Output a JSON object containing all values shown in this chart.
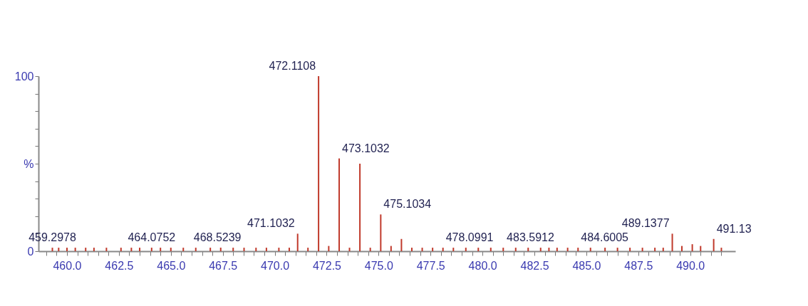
{
  "chart_data": {
    "type": "bar",
    "color": "#c0392b",
    "x": [
      459.2978,
      459.6,
      460.0,
      460.4,
      460.9,
      461.3,
      461.9,
      462.6,
      463.1,
      463.5,
      464.0752,
      464.5,
      465.0,
      465.6,
      466.2,
      466.9,
      467.4,
      468.0,
      468.5239,
      469.1,
      469.6,
      470.2,
      470.7,
      471.1032,
      471.6,
      472.1108,
      472.6,
      473.1032,
      473.6,
      474.1,
      474.6,
      475.1034,
      475.6,
      476.1,
      476.6,
      477.1,
      477.6,
      478.0991,
      478.6,
      479.2,
      479.8,
      480.4,
      481.0,
      481.6,
      482.2,
      482.8,
      483.2,
      483.5912,
      484.1,
      484.6005,
      485.2,
      485.9,
      486.5,
      487.1,
      487.7,
      488.3,
      488.7,
      489.1377,
      489.6,
      490.1,
      490.5,
      491.13,
      491.5
    ],
    "values": [
      2,
      2,
      2,
      2,
      2,
      2,
      2,
      2,
      2,
      2,
      2,
      2,
      2,
      2,
      2,
      2,
      2,
      2,
      2,
      2,
      2,
      2,
      2,
      10,
      2,
      100,
      3,
      53,
      2,
      50,
      2,
      21,
      3,
      7,
      2,
      2,
      2,
      2,
      2,
      2,
      2,
      2,
      2,
      2,
      2,
      2,
      2,
      2,
      2,
      2,
      2,
      2,
      2,
      2,
      2,
      2,
      2,
      10,
      3,
      4,
      3,
      7,
      2
    ],
    "xlim": [
      458.8,
      492.0
    ],
    "ylim": [
      0,
      100
    ],
    "xticks": [
      {
        "value": 459.0,
        "label": null
      },
      {
        "value": 459.5,
        "label": null
      },
      {
        "value": 460.0,
        "label": "460.0"
      },
      {
        "value": 460.5,
        "label": null
      },
      {
        "value": 461.0,
        "label": null
      },
      {
        "value": 461.5,
        "label": null
      },
      {
        "value": 462.0,
        "label": null
      },
      {
        "value": 462.5,
        "label": "462.5"
      },
      {
        "value": 463.0,
        "label": null
      },
      {
        "value": 463.5,
        "label": null
      },
      {
        "value": 464.0,
        "label": null
      },
      {
        "value": 464.5,
        "label": null
      },
      {
        "value": 465.0,
        "label": "465.0"
      },
      {
        "value": 465.5,
        "label": null
      },
      {
        "value": 466.0,
        "label": null
      },
      {
        "value": 466.5,
        "label": null
      },
      {
        "value": 467.0,
        "label": null
      },
      {
        "value": 467.5,
        "label": "467.5"
      },
      {
        "value": 468.0,
        "label": null
      },
      {
        "value": 468.5,
        "label": null
      },
      {
        "value": 469.0,
        "label": null
      },
      {
        "value": 469.5,
        "label": null
      },
      {
        "value": 470.0,
        "label": "470.0"
      },
      {
        "value": 470.5,
        "label": null
      },
      {
        "value": 471.0,
        "label": null
      },
      {
        "value": 471.5,
        "label": null
      },
      {
        "value": 472.0,
        "label": null
      },
      {
        "value": 472.5,
        "label": "472.5"
      },
      {
        "value": 473.0,
        "label": null
      },
      {
        "value": 473.5,
        "label": null
      },
      {
        "value": 474.0,
        "label": null
      },
      {
        "value": 474.5,
        "label": null
      },
      {
        "value": 475.0,
        "label": "475.0"
      },
      {
        "value": 475.5,
        "label": null
      },
      {
        "value": 476.0,
        "label": null
      },
      {
        "value": 476.5,
        "label": null
      },
      {
        "value": 477.0,
        "label": null
      },
      {
        "value": 477.5,
        "label": "477.5"
      },
      {
        "value": 478.0,
        "label": null
      },
      {
        "value": 478.5,
        "label": null
      },
      {
        "value": 479.0,
        "label": null
      },
      {
        "value": 479.5,
        "label": null
      },
      {
        "value": 480.0,
        "label": "480.0"
      },
      {
        "value": 480.5,
        "label": null
      },
      {
        "value": 481.0,
        "label": null
      },
      {
        "value": 481.5,
        "label": null
      },
      {
        "value": 482.0,
        "label": null
      },
      {
        "value": 482.5,
        "label": "482.5"
      },
      {
        "value": 483.0,
        "label": null
      },
      {
        "value": 483.5,
        "label": null
      },
      {
        "value": 484.0,
        "label": null
      },
      {
        "value": 484.5,
        "label": null
      },
      {
        "value": 485.0,
        "label": "485.0"
      },
      {
        "value": 485.5,
        "label": null
      },
      {
        "value": 486.0,
        "label": null
      },
      {
        "value": 486.5,
        "label": null
      },
      {
        "value": 487.0,
        "label": null
      },
      {
        "value": 487.5,
        "label": "487.5"
      },
      {
        "value": 488.0,
        "label": null
      },
      {
        "value": 488.5,
        "label": null
      },
      {
        "value": 489.0,
        "label": null
      },
      {
        "value": 489.5,
        "label": null
      },
      {
        "value": 490.0,
        "label": "490.0"
      },
      {
        "value": 490.5,
        "label": null
      },
      {
        "value": 491.0,
        "label": null
      },
      {
        "value": 491.5,
        "label": null
      }
    ],
    "yticks": [
      0,
      {
        "value": 10,
        "label": null
      },
      {
        "value": 20,
        "label": null
      },
      {
        "value": 30,
        "label": null
      },
      {
        "value": 40,
        "label": null
      },
      {
        "value": 50,
        "label": "%"
      },
      {
        "value": 60,
        "label": null
      },
      {
        "value": 70,
        "label": null
      },
      {
        "value": 80,
        "label": null
      },
      {
        "value": 90,
        "label": null
      },
      100
    ],
    "grid": false,
    "annotations": [
      {
        "text": "459.2978",
        "x": 459.2978,
        "y": 2
      },
      {
        "text": "464.0752",
        "x": 464.0752,
        "y": 2
      },
      {
        "text": "468.5239",
        "x": 468.5239,
        "y": 2
      },
      {
        "text": "471.1032",
        "x": 471.1032,
        "y": 10
      },
      {
        "text": "472.1108",
        "x": 472.1108,
        "y": 100
      },
      {
        "text": "473.1032",
        "x": 473.1032,
        "y": 53
      },
      {
        "text": "475.1034",
        "x": 475.1034,
        "y": 21
      },
      {
        "text": "478.0991",
        "x": 478.0991,
        "y": 2
      },
      {
        "text": "483.5912",
        "x": 483.5912,
        "y": 2
      },
      {
        "text": "484.6005",
        "x": 484.6005,
        "y": 2
      },
      {
        "text": "489.1377",
        "x": 489.1377,
        "y": 10
      },
      {
        "text": "491.13",
        "x": 491.13,
        "y": 7
      }
    ]
  }
}
